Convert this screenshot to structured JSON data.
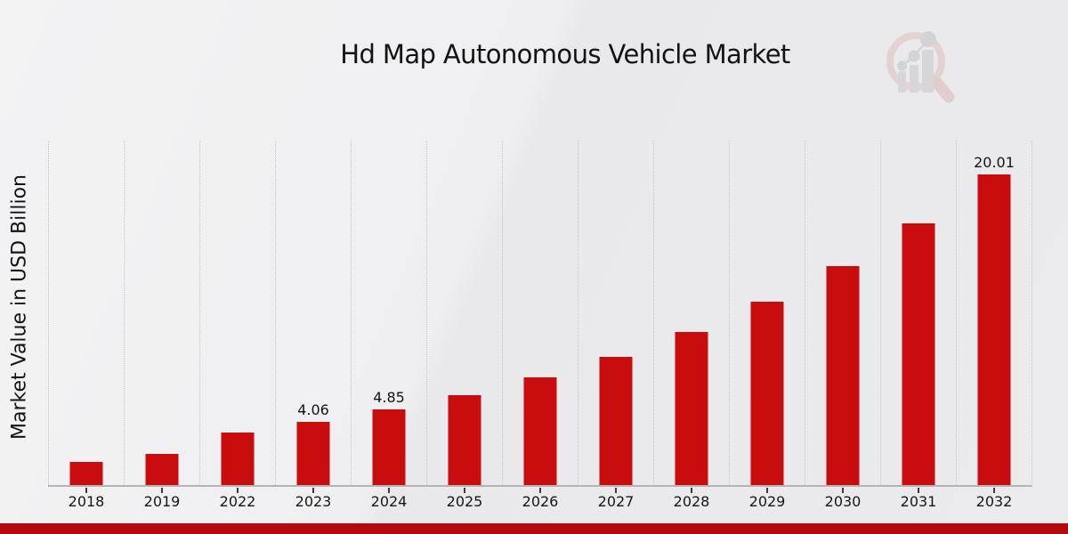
{
  "header": {
    "title": "Hd Map Autonomous Vehicle Market",
    "logo_icon": "magnifier-bar-chart-watermark"
  },
  "chart_data": {
    "type": "bar",
    "title": "Hd Map Autonomous Vehicle Market",
    "xlabel": "",
    "ylabel": "Market Value in USD Billion",
    "categories": [
      "2018",
      "2019",
      "2022",
      "2023",
      "2024",
      "2025",
      "2026",
      "2027",
      "2028",
      "2029",
      "2030",
      "2031",
      "2032"
    ],
    "values": [
      1.52,
      2.0,
      3.4,
      4.06,
      4.85,
      5.79,
      6.92,
      8.27,
      9.88,
      11.8,
      14.1,
      16.85,
      20.01
    ],
    "bar_labels": [
      "",
      "",
      "",
      "4.06",
      "4.85",
      "",
      "",
      "",
      "",
      "",
      "",
      "",
      "20.01"
    ],
    "ylim": [
      0,
      22.2
    ],
    "grid": "vertical-dotted",
    "legend": "none",
    "bar_color": "#c90d0e",
    "accent_bar_color": "#b50a0b",
    "gridline_color": "#c5c5c8",
    "axis_line_color": "#b4b4b6"
  }
}
